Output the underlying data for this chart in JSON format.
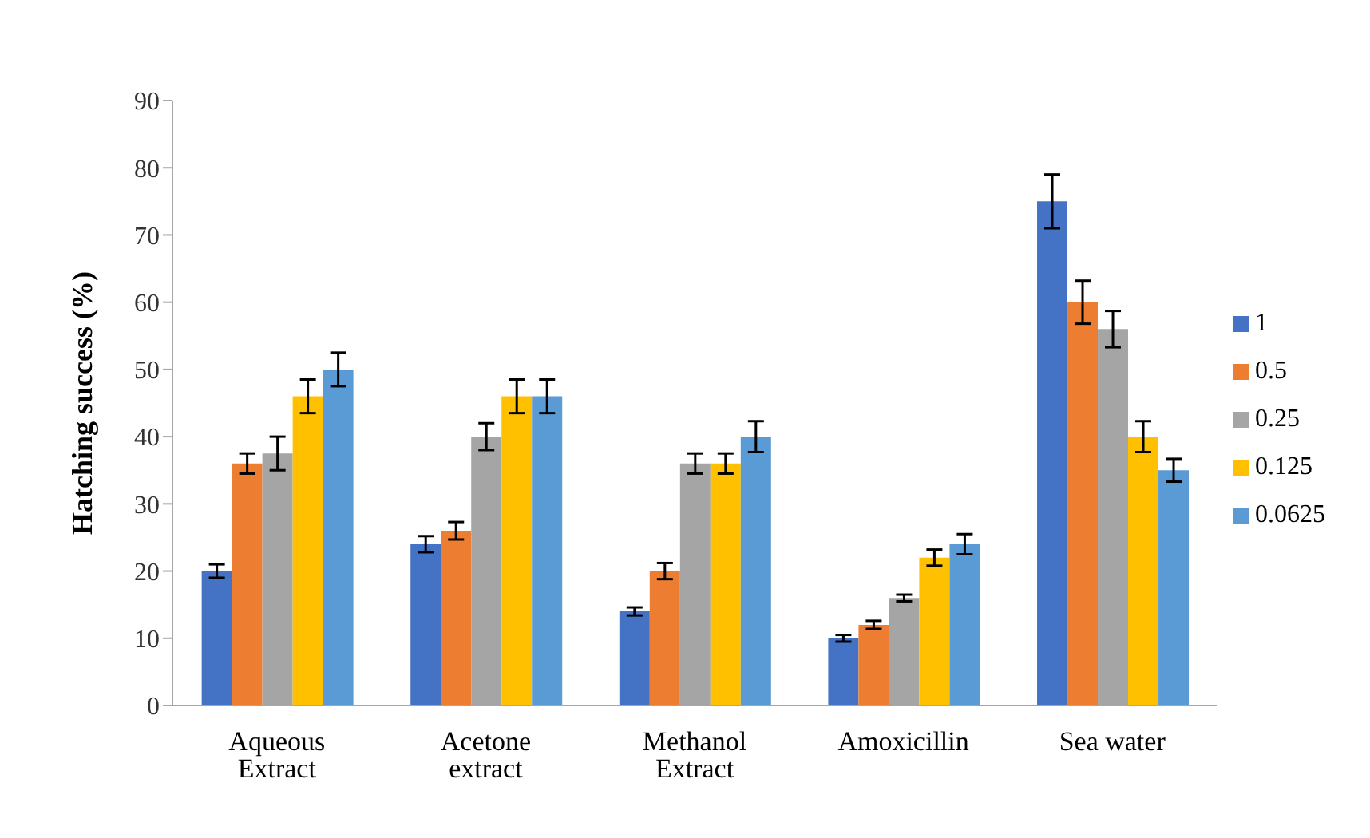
{
  "chart_data": {
    "type": "bar",
    "ylabel": "Hatching success (%)",
    "categories": [
      "Aqueous Extract",
      "Acetone extract",
      "Methanol Extract",
      "Amoxicillin",
      "Sea water"
    ],
    "series": [
      {
        "name": "1",
        "color": "#4472c4",
        "values": [
          20,
          24,
          14,
          10,
          75
        ],
        "errors": [
          1,
          1.2,
          0.6,
          0.5,
          4
        ]
      },
      {
        "name": "0.5",
        "color": "#ed7d31",
        "values": [
          36,
          26,
          20,
          12,
          60
        ],
        "errors": [
          1.5,
          1.3,
          1.2,
          0.6,
          3.2
        ]
      },
      {
        "name": "0.25",
        "color": "#a5a5a5",
        "values": [
          37.5,
          40,
          36,
          16,
          56
        ],
        "errors": [
          2.5,
          2,
          1.5,
          0.5,
          2.7
        ]
      },
      {
        "name": "0.125",
        "color": "#ffc000",
        "values": [
          46,
          46,
          36,
          22,
          40
        ],
        "errors": [
          2.5,
          2.5,
          1.5,
          1.2,
          2.3
        ]
      },
      {
        "name": "0.0625",
        "color": "#5b9bd5",
        "values": [
          50,
          46,
          40,
          24,
          35
        ],
        "errors": [
          2.5,
          2.5,
          2.3,
          1.5,
          1.7
        ]
      }
    ],
    "ylim": [
      0,
      90
    ],
    "yticks": [
      0,
      10,
      20,
      30,
      40,
      50,
      60,
      70,
      80,
      90
    ],
    "grid": false,
    "legend": "right"
  }
}
